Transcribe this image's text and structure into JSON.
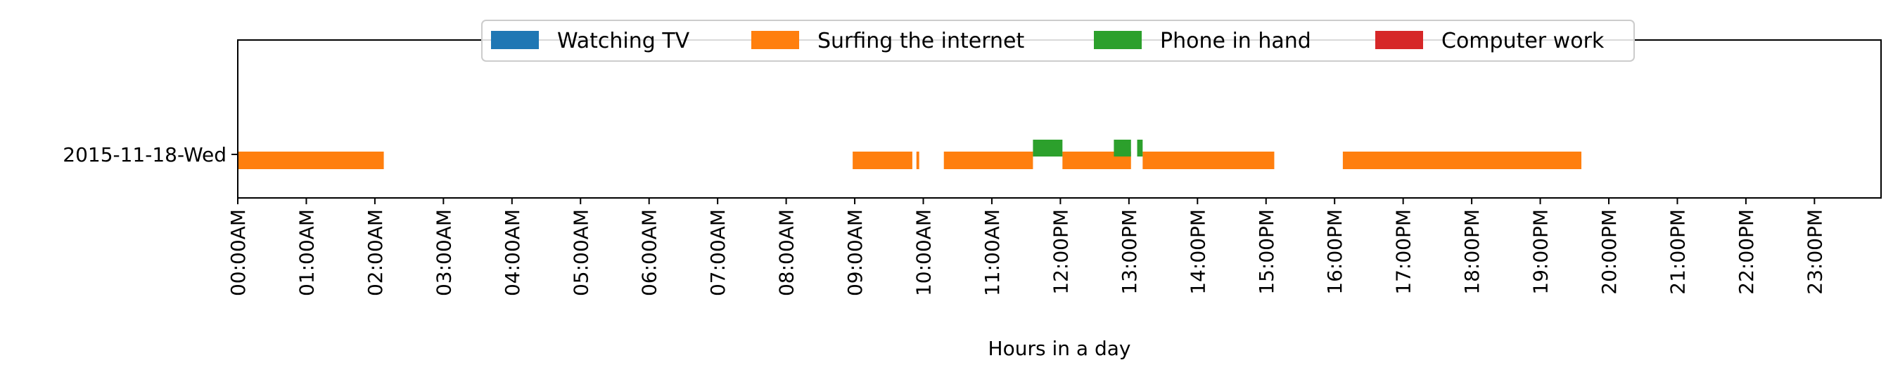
{
  "chart_data": {
    "type": "broken-barh",
    "xlabel": "Hours in a day",
    "xlim": [
      0,
      24
    ],
    "x_ticks": [
      "00:00AM",
      "01:00AM",
      "02:00AM",
      "03:00AM",
      "04:00AM",
      "05:00AM",
      "06:00AM",
      "07:00AM",
      "08:00AM",
      "09:00AM",
      "10:00AM",
      "11:00AM",
      "12:00PM",
      "13:00PM",
      "14:00PM",
      "15:00PM",
      "16:00PM",
      "17:00PM",
      "18:00PM",
      "19:00PM",
      "20:00PM",
      "21:00PM",
      "22:00PM",
      "23:00PM"
    ],
    "categories": [
      "2015-11-18-Wed"
    ],
    "legend_position": "upper center",
    "series": [
      {
        "name": "Watching TV",
        "color": "#1f77b4",
        "intervals": []
      },
      {
        "name": "Surfing the internet",
        "color": "#ff7f0e",
        "intervals": [
          [
            0.0,
            2.13
          ],
          [
            8.97,
            9.84
          ],
          [
            9.9,
            9.94
          ],
          [
            10.3,
            11.6
          ],
          [
            12.03,
            13.03
          ],
          [
            13.2,
            15.12
          ],
          [
            16.12,
            19.6
          ]
        ]
      },
      {
        "name": "Phone in hand",
        "color": "#2ca02c",
        "intervals": [
          [
            11.6,
            12.03
          ],
          [
            12.78,
            13.03
          ],
          [
            13.12,
            13.2
          ]
        ]
      },
      {
        "name": "Computer work",
        "color": "#d62728",
        "intervals": []
      }
    ]
  }
}
